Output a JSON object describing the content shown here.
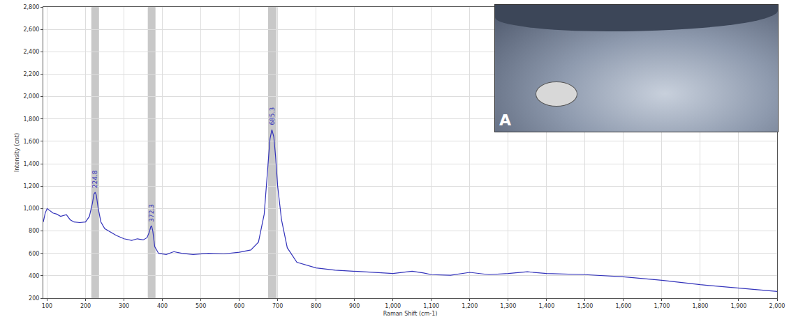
{
  "chart_data": {
    "type": "line",
    "x_label": "Raman Shift (cm-1)",
    "y_label": "Intensity (cnt)",
    "inset_label": "A",
    "x": [
      90,
      95,
      100,
      105,
      115,
      125,
      135,
      150,
      160,
      170,
      185,
      200,
      210,
      218,
      222,
      225,
      228,
      233,
      240,
      250,
      265,
      280,
      300,
      320,
      335,
      350,
      360,
      366,
      370,
      372,
      375,
      380,
      390,
      410,
      430,
      450,
      480,
      520,
      560,
      600,
      630,
      650,
      665,
      675,
      680,
      685,
      690,
      695,
      700,
      710,
      725,
      750,
      800,
      850,
      900,
      950,
      1000,
      1050,
      1080,
      1100,
      1150,
      1200,
      1250,
      1300,
      1350,
      1400,
      1450,
      1500,
      1600,
      1700,
      1800,
      1900,
      2000
    ],
    "values": [
      880,
      960,
      1000,
      985,
      960,
      950,
      930,
      945,
      900,
      880,
      875,
      880,
      930,
      1050,
      1130,
      1145,
      1120,
      1000,
      880,
      820,
      790,
      760,
      730,
      715,
      730,
      720,
      740,
      790,
      840,
      844,
      800,
      660,
      600,
      590,
      615,
      600,
      590,
      600,
      595,
      610,
      630,
      700,
      950,
      1400,
      1620,
      1705,
      1640,
      1450,
      1200,
      900,
      650,
      520,
      470,
      450,
      440,
      430,
      420,
      440,
      425,
      410,
      405,
      430,
      410,
      420,
      435,
      420,
      415,
      410,
      390,
      360,
      320,
      290,
      260
    ],
    "color": "#3333bb",
    "bands": [
      [
        215,
        235
      ],
      [
        362,
        382
      ],
      [
        675,
        697
      ]
    ],
    "annotations": [
      {
        "x": 224.8,
        "y": 1145,
        "text": "224.8"
      },
      {
        "x": 372.3,
        "y": 844,
        "text": "372.3"
      },
      {
        "x": 685.3,
        "y": 1705,
        "text": "685.3"
      }
    ],
    "xlim": [
      90,
      2000
    ],
    "xticks": [
      100,
      200,
      300,
      400,
      500,
      600,
      700,
      800,
      900,
      {
        "value": 1000,
        "label": "1,000"
      },
      {
        "value": 1100,
        "label": "1,100"
      },
      {
        "value": 1200,
        "label": "1,200"
      },
      {
        "value": 1300,
        "label": "1,300"
      },
      {
        "value": 1400,
        "label": "1,400"
      },
      {
        "value": 1500,
        "label": "1,500"
      },
      {
        "value": 1600,
        "label": "1,600"
      },
      {
        "value": 1700,
        "label": "1,700"
      },
      {
        "value": 1800,
        "label": "1,800"
      },
      {
        "value": 1900,
        "label": "1,900"
      },
      {
        "value": 2000,
        "label": "2,000"
      }
    ],
    "ylim": [
      200,
      2800
    ],
    "yticks": [
      200,
      400,
      600,
      800,
      {
        "value": 1000,
        "label": "1,000"
      },
      {
        "value": 1200,
        "label": "1,200"
      },
      {
        "value": 1400,
        "label": "1,400"
      },
      {
        "value": 1600,
        "label": "1,600"
      },
      {
        "value": 1800,
        "label": "1,800"
      },
      {
        "value": 2000,
        "label": "2,000"
      },
      {
        "value": 2200,
        "label": "2,200"
      },
      {
        "value": 2400,
        "label": "2,400"
      },
      {
        "value": 2600,
        "label": "2,600"
      },
      {
        "value": 2800,
        "label": "2,800"
      }
    ],
    "grid": true
  }
}
